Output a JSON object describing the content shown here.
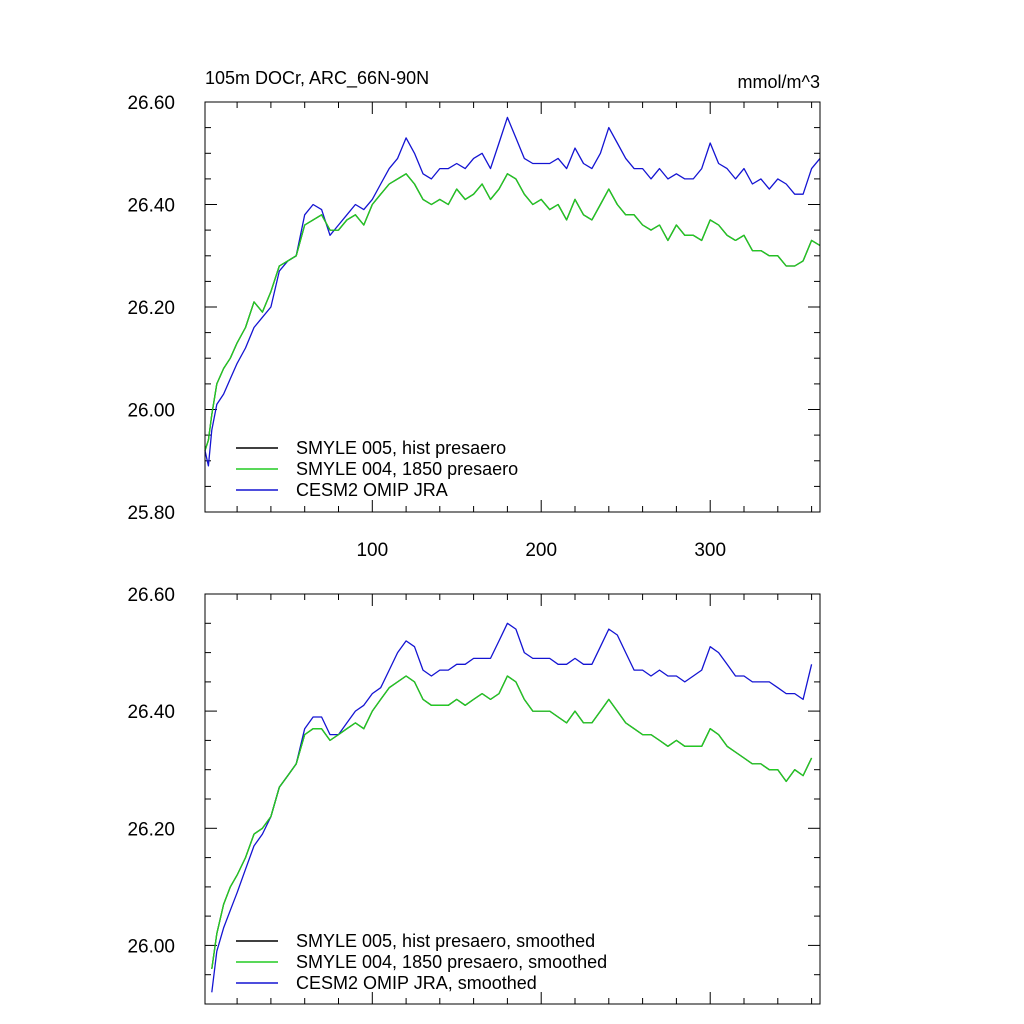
{
  "chart_data": [
    {
      "type": "line",
      "title": "105m DOCr, ARC_66N-90N",
      "units": "mmol/m^3",
      "xlim": [
        1,
        365
      ],
      "ylim": [
        25.8,
        26.6
      ],
      "xticks": [
        100,
        200,
        300
      ],
      "xtick_labels": [
        "100",
        "200",
        "300"
      ],
      "yticks": [
        25.8,
        26.0,
        26.2,
        26.4,
        26.6
      ],
      "ytick_labels": [
        "25.80",
        "26.00",
        "26.20",
        "26.40",
        "26.60"
      ],
      "legend_position": "bottom-left",
      "series": [
        {
          "name": "SMYLE 005, hist presaero",
          "color": "#000000",
          "x": [
            1,
            3,
            5,
            8,
            12,
            16,
            20,
            25,
            30,
            35,
            40,
            45,
            50,
            55,
            60,
            65,
            70,
            75,
            80,
            85,
            90,
            95,
            100,
            105,
            110,
            115,
            120,
            125,
            130,
            135,
            140,
            145,
            150,
            155,
            160,
            165,
            170,
            175,
            180,
            185,
            190,
            195,
            200,
            205,
            210,
            215,
            220,
            225,
            230,
            235,
            240,
            245,
            250,
            255,
            260,
            265,
            270,
            275,
            280,
            285,
            290,
            295,
            300,
            305,
            310,
            315,
            320,
            325,
            330,
            335,
            340,
            345,
            350,
            355,
            360,
            365
          ],
          "y": [
            25.92,
            25.94,
            25.99,
            26.05,
            26.08,
            26.1,
            26.13,
            26.16,
            26.21,
            26.19,
            26.23,
            26.28,
            26.29,
            26.3,
            26.36,
            26.37,
            26.38,
            26.35,
            26.35,
            26.37,
            26.38,
            26.36,
            26.4,
            26.42,
            26.44,
            26.45,
            26.46,
            26.44,
            26.41,
            26.4,
            26.41,
            26.4,
            26.43,
            26.41,
            26.42,
            26.44,
            26.41,
            26.43,
            26.46,
            26.45,
            26.42,
            26.4,
            26.41,
            26.39,
            26.4,
            26.37,
            26.41,
            26.38,
            26.37,
            26.4,
            26.43,
            26.4,
            26.38,
            26.38,
            26.36,
            26.35,
            26.36,
            26.33,
            26.36,
            26.34,
            26.34,
            26.33,
            26.37,
            26.36,
            26.34,
            26.33,
            26.34,
            26.31,
            26.31,
            26.3,
            26.3,
            26.28,
            26.28,
            26.29,
            26.33,
            26.32
          ]
        },
        {
          "name": "SMYLE 004, 1850 presaero",
          "color": "#22cc22",
          "x": [
            1,
            3,
            5,
            8,
            12,
            16,
            20,
            25,
            30,
            35,
            40,
            45,
            50,
            55,
            60,
            65,
            70,
            75,
            80,
            85,
            90,
            95,
            100,
            105,
            110,
            115,
            120,
            125,
            130,
            135,
            140,
            145,
            150,
            155,
            160,
            165,
            170,
            175,
            180,
            185,
            190,
            195,
            200,
            205,
            210,
            215,
            220,
            225,
            230,
            235,
            240,
            245,
            250,
            255,
            260,
            265,
            270,
            275,
            280,
            285,
            290,
            295,
            300,
            305,
            310,
            315,
            320,
            325,
            330,
            335,
            340,
            345,
            350,
            355,
            360,
            365
          ],
          "y": [
            25.92,
            25.94,
            25.99,
            26.05,
            26.08,
            26.1,
            26.13,
            26.16,
            26.21,
            26.19,
            26.23,
            26.28,
            26.29,
            26.3,
            26.36,
            26.37,
            26.38,
            26.35,
            26.35,
            26.37,
            26.38,
            26.36,
            26.4,
            26.42,
            26.44,
            26.45,
            26.46,
            26.44,
            26.41,
            26.4,
            26.41,
            26.4,
            26.43,
            26.41,
            26.42,
            26.44,
            26.41,
            26.43,
            26.46,
            26.45,
            26.42,
            26.4,
            26.41,
            26.39,
            26.4,
            26.37,
            26.41,
            26.38,
            26.37,
            26.4,
            26.43,
            26.4,
            26.38,
            26.38,
            26.36,
            26.35,
            26.36,
            26.33,
            26.36,
            26.34,
            26.34,
            26.33,
            26.37,
            26.36,
            26.34,
            26.33,
            26.34,
            26.31,
            26.31,
            26.3,
            26.3,
            26.28,
            26.28,
            26.29,
            26.33,
            26.32
          ]
        },
        {
          "name": "CESM2 OMIP JRA",
          "color": "#1414d2",
          "x": [
            1,
            3,
            5,
            8,
            12,
            16,
            20,
            25,
            30,
            35,
            40,
            45,
            50,
            55,
            60,
            65,
            70,
            75,
            80,
            85,
            90,
            95,
            100,
            105,
            110,
            115,
            120,
            125,
            130,
            135,
            140,
            145,
            150,
            155,
            160,
            165,
            170,
            175,
            180,
            185,
            190,
            195,
            200,
            205,
            210,
            215,
            220,
            225,
            230,
            235,
            240,
            245,
            250,
            255,
            260,
            265,
            270,
            275,
            280,
            285,
            290,
            295,
            300,
            305,
            310,
            315,
            320,
            325,
            330,
            335,
            340,
            345,
            350,
            355,
            360,
            365
          ],
          "y": [
            25.92,
            25.89,
            25.96,
            26.01,
            26.03,
            26.06,
            26.09,
            26.12,
            26.16,
            26.18,
            26.2,
            26.27,
            26.29,
            26.3,
            26.38,
            26.4,
            26.39,
            26.34,
            26.36,
            26.38,
            26.4,
            26.39,
            26.41,
            26.44,
            26.47,
            26.49,
            26.53,
            26.5,
            26.46,
            26.45,
            26.47,
            26.47,
            26.48,
            26.47,
            26.49,
            26.5,
            26.47,
            26.52,
            26.57,
            26.53,
            26.49,
            26.48,
            26.48,
            26.48,
            26.49,
            26.47,
            26.51,
            26.48,
            26.47,
            26.5,
            26.55,
            26.52,
            26.49,
            26.47,
            26.47,
            26.45,
            26.47,
            26.45,
            26.46,
            26.45,
            26.45,
            26.47,
            26.52,
            26.48,
            26.47,
            26.45,
            26.47,
            26.44,
            26.45,
            26.43,
            26.45,
            26.44,
            26.42,
            26.42,
            26.47,
            26.49
          ]
        }
      ]
    },
    {
      "type": "line",
      "title": "",
      "xlim": [
        1,
        365
      ],
      "ylim": [
        25.9,
        26.6
      ],
      "xticks": [
        100,
        200,
        300
      ],
      "xtick_labels": [],
      "yticks": [
        26.0,
        26.2,
        26.4,
        26.6
      ],
      "ytick_labels": [
        "26.00",
        "26.20",
        "26.40",
        "26.60"
      ],
      "legend_position": "bottom-left",
      "series": [
        {
          "name": "SMYLE 005, hist presaero, smoothed",
          "color": "#000000",
          "x": [
            5,
            8,
            12,
            16,
            20,
            25,
            30,
            35,
            40,
            45,
            50,
            55,
            60,
            65,
            70,
            75,
            80,
            85,
            90,
            95,
            100,
            105,
            110,
            115,
            120,
            125,
            130,
            135,
            140,
            145,
            150,
            155,
            160,
            165,
            170,
            175,
            180,
            185,
            190,
            195,
            200,
            205,
            210,
            215,
            220,
            225,
            230,
            235,
            240,
            245,
            250,
            255,
            260,
            265,
            270,
            275,
            280,
            285,
            290,
            295,
            300,
            305,
            310,
            315,
            320,
            325,
            330,
            335,
            340,
            345,
            350,
            355,
            360
          ],
          "y": [
            25.96,
            26.02,
            26.07,
            26.1,
            26.12,
            26.15,
            26.19,
            26.2,
            26.22,
            26.27,
            26.29,
            26.31,
            26.36,
            26.37,
            26.37,
            26.35,
            26.36,
            26.37,
            26.38,
            26.37,
            26.4,
            26.42,
            26.44,
            26.45,
            26.46,
            26.45,
            26.42,
            26.41,
            26.41,
            26.41,
            26.42,
            26.41,
            26.42,
            26.43,
            26.42,
            26.43,
            26.46,
            26.45,
            26.42,
            26.4,
            26.4,
            26.4,
            26.39,
            26.38,
            26.4,
            26.38,
            26.38,
            26.4,
            26.42,
            26.4,
            26.38,
            26.37,
            26.36,
            26.36,
            26.35,
            26.34,
            26.35,
            26.34,
            26.34,
            26.34,
            26.37,
            26.36,
            26.34,
            26.33,
            26.32,
            26.31,
            26.31,
            26.3,
            26.3,
            26.28,
            26.3,
            26.29,
            26.32
          ]
        },
        {
          "name": "SMYLE 004, 1850 presaero, smoothed",
          "color": "#22cc22",
          "x": [
            5,
            8,
            12,
            16,
            20,
            25,
            30,
            35,
            40,
            45,
            50,
            55,
            60,
            65,
            70,
            75,
            80,
            85,
            90,
            95,
            100,
            105,
            110,
            115,
            120,
            125,
            130,
            135,
            140,
            145,
            150,
            155,
            160,
            165,
            170,
            175,
            180,
            185,
            190,
            195,
            200,
            205,
            210,
            215,
            220,
            225,
            230,
            235,
            240,
            245,
            250,
            255,
            260,
            265,
            270,
            275,
            280,
            285,
            290,
            295,
            300,
            305,
            310,
            315,
            320,
            325,
            330,
            335,
            340,
            345,
            350,
            355,
            360
          ],
          "y": [
            25.96,
            26.02,
            26.07,
            26.1,
            26.12,
            26.15,
            26.19,
            26.2,
            26.22,
            26.27,
            26.29,
            26.31,
            26.36,
            26.37,
            26.37,
            26.35,
            26.36,
            26.37,
            26.38,
            26.37,
            26.4,
            26.42,
            26.44,
            26.45,
            26.46,
            26.45,
            26.42,
            26.41,
            26.41,
            26.41,
            26.42,
            26.41,
            26.42,
            26.43,
            26.42,
            26.43,
            26.46,
            26.45,
            26.42,
            26.4,
            26.4,
            26.4,
            26.39,
            26.38,
            26.4,
            26.38,
            26.38,
            26.4,
            26.42,
            26.4,
            26.38,
            26.37,
            26.36,
            26.36,
            26.35,
            26.34,
            26.35,
            26.34,
            26.34,
            26.34,
            26.37,
            26.36,
            26.34,
            26.33,
            26.32,
            26.31,
            26.31,
            26.3,
            26.3,
            26.28,
            26.3,
            26.29,
            26.32
          ]
        },
        {
          "name": "CESM2 OMIP JRA, smoothed",
          "color": "#1414d2",
          "x": [
            5,
            8,
            12,
            16,
            20,
            25,
            30,
            35,
            40,
            45,
            50,
            55,
            60,
            65,
            70,
            75,
            80,
            85,
            90,
            95,
            100,
            105,
            110,
            115,
            120,
            125,
            130,
            135,
            140,
            145,
            150,
            155,
            160,
            165,
            170,
            175,
            180,
            185,
            190,
            195,
            200,
            205,
            210,
            215,
            220,
            225,
            230,
            235,
            240,
            245,
            250,
            255,
            260,
            265,
            270,
            275,
            280,
            285,
            290,
            295,
            300,
            305,
            310,
            315,
            320,
            325,
            330,
            335,
            340,
            345,
            350,
            355,
            360
          ],
          "y": [
            25.92,
            25.99,
            26.03,
            26.06,
            26.09,
            26.13,
            26.17,
            26.19,
            26.22,
            26.27,
            26.29,
            26.31,
            26.37,
            26.39,
            26.39,
            26.36,
            26.36,
            26.38,
            26.4,
            26.41,
            26.43,
            26.44,
            26.47,
            26.5,
            26.52,
            26.51,
            26.47,
            26.46,
            26.47,
            26.47,
            26.48,
            26.48,
            26.49,
            26.49,
            26.49,
            26.52,
            26.55,
            26.54,
            26.5,
            26.49,
            26.49,
            26.49,
            26.48,
            26.48,
            26.49,
            26.48,
            26.48,
            26.51,
            26.54,
            26.53,
            26.5,
            26.47,
            26.47,
            26.46,
            26.47,
            26.46,
            26.46,
            26.45,
            26.46,
            26.47,
            26.51,
            26.5,
            26.48,
            26.46,
            26.46,
            26.45,
            26.45,
            26.45,
            26.44,
            26.43,
            26.43,
            26.42,
            26.48
          ]
        }
      ]
    }
  ]
}
